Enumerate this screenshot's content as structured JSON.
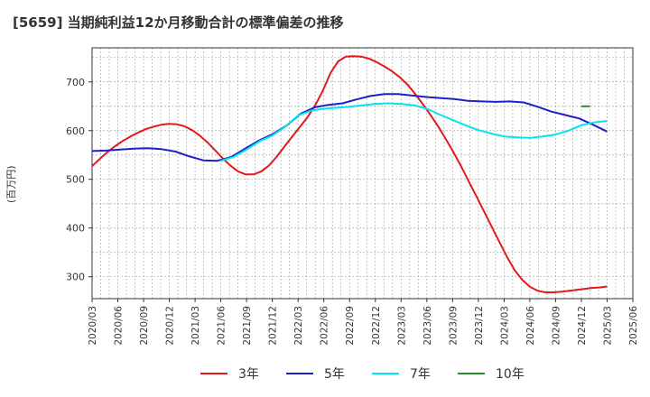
{
  "chart_data": {
    "type": "line",
    "title": "[5659]  当期純利益12か月移動合計の標準偏差の推移",
    "ylabel": "(百万円)",
    "xlabel": "",
    "ylim": [
      255,
      770
    ],
    "yticks": [
      300,
      400,
      500,
      600,
      700
    ],
    "grid": true,
    "legend_position": "bottom",
    "x_tick_labels": [
      "2020/03",
      "2020/06",
      "2020/09",
      "2020/12",
      "2021/03",
      "2021/06",
      "2021/09",
      "2021/12",
      "2022/03",
      "2022/06",
      "2022/09",
      "2022/12",
      "2023/03",
      "2023/06",
      "2023/09",
      "2023/12",
      "2024/03",
      "2024/06",
      "2024/09",
      "2024/12",
      "2025/03",
      "2025/06"
    ],
    "series": [
      {
        "name": "3年",
        "color": "#e31a1c",
        "points": [
          [
            "2020/03",
            527
          ],
          [
            "2020/04",
            542
          ],
          [
            "2020/05",
            556
          ],
          [
            "2020/06",
            568
          ],
          [
            "2020/07",
            579
          ],
          [
            "2020/08",
            588
          ],
          [
            "2020/09",
            596
          ],
          [
            "2020/10",
            603
          ],
          [
            "2020/11",
            608
          ],
          [
            "2020/12",
            612
          ],
          [
            "2021/01",
            614
          ],
          [
            "2021/02",
            613
          ],
          [
            "2021/03",
            609
          ],
          [
            "2021/04",
            601
          ],
          [
            "2021/05",
            590
          ],
          [
            "2021/06",
            576
          ],
          [
            "2021/07",
            560
          ],
          [
            "2021/08",
            543
          ],
          [
            "2021/09",
            528
          ],
          [
            "2021/10",
            516
          ],
          [
            "2021/11",
            510
          ],
          [
            "2021/12",
            510
          ],
          [
            "2022/01",
            516
          ],
          [
            "2022/02",
            528
          ],
          [
            "2022/03",
            546
          ],
          [
            "2022/04",
            567
          ],
          [
            "2022/05",
            587
          ],
          [
            "2022/06",
            607
          ],
          [
            "2022/07",
            627
          ],
          [
            "2022/08",
            651
          ],
          [
            "2022/09",
            681
          ],
          [
            "2022/10",
            718
          ],
          [
            "2022/11",
            742
          ],
          [
            "2022/12",
            752
          ],
          [
            "2023/01",
            753
          ],
          [
            "2023/02",
            752
          ],
          [
            "2023/03",
            748
          ],
          [
            "2023/04",
            741
          ],
          [
            "2023/05",
            732
          ],
          [
            "2023/06",
            722
          ],
          [
            "2023/07",
            710
          ],
          [
            "2023/08",
            695
          ],
          [
            "2023/09",
            676
          ],
          [
            "2023/10",
            655
          ],
          [
            "2023/11",
            633
          ],
          [
            "2023/12",
            609
          ],
          [
            "2024/01",
            583
          ],
          [
            "2024/02",
            556
          ],
          [
            "2024/03",
            527
          ],
          [
            "2024/04",
            496
          ],
          [
            "2024/05",
            465
          ],
          [
            "2024/06",
            434
          ],
          [
            "2024/07",
            402
          ],
          [
            "2024/08",
            371
          ],
          [
            "2024/09",
            340
          ],
          [
            "2024/10",
            313
          ],
          [
            "2024/11",
            293
          ],
          [
            "2024/12",
            279
          ],
          [
            "2025/01",
            271
          ],
          [
            "2025/02",
            268
          ],
          [
            "2025/03",
            268
          ],
          [
            "2025/04",
            269
          ],
          [
            "2025/05",
            271
          ],
          [
            "2025/06",
            273
          ],
          [
            "2025/07",
            275
          ],
          [
            "2025/08",
            277
          ],
          [
            "2025/09",
            278
          ],
          [
            "2025/10",
            280
          ]
        ]
      },
      {
        "name": "5年",
        "color": "#1f1fc8",
        "points": [
          [
            "2020/03",
            558
          ],
          [
            "2020/06",
            559
          ],
          [
            "2020/09",
            561
          ],
          [
            "2020/12",
            563
          ],
          [
            "2021/03",
            564
          ],
          [
            "2021/06",
            562
          ],
          [
            "2021/09",
            557
          ],
          [
            "2021/12",
            547
          ],
          [
            "2022/03",
            539
          ],
          [
            "2022/06",
            538
          ],
          [
            "2022/09",
            546
          ],
          [
            "2022/12",
            563
          ],
          [
            "2023/03",
            580
          ],
          [
            "2023/06",
            593
          ],
          [
            "2023/09",
            611
          ],
          [
            "2023/12",
            635
          ],
          [
            "2024/01",
            648
          ],
          [
            "2024/02",
            653
          ],
          [
            "2024/03",
            656
          ],
          [
            "2024/06",
            664
          ],
          [
            "2024/09",
            671
          ],
          [
            "2024/12",
            675
          ],
          [
            "2025/01",
            675
          ],
          [
            "2025/02",
            672
          ],
          [
            "2025/03",
            669
          ],
          [
            "2025/06",
            667
          ],
          [
            "2025/09",
            665
          ],
          [
            "2025/12",
            661
          ],
          [
            "2026/01",
            660
          ],
          [
            "2026/03",
            659
          ],
          [
            "2026/06",
            660
          ],
          [
            "2026/09",
            658
          ],
          [
            "2026/12",
            649
          ],
          [
            "2027/03",
            639
          ],
          [
            "2027/04",
            632
          ],
          [
            "2027/05",
            625
          ],
          [
            "2027/06",
            612
          ],
          [
            "2027/07",
            598
          ]
        ]
      },
      {
        "name": "7年",
        "color": "#00e5ee",
        "points": [
          [
            "2022/06",
            538
          ],
          [
            "2022/09",
            546
          ],
          [
            "2022/12",
            561
          ],
          [
            "2023/03",
            578
          ],
          [
            "2023/06",
            590
          ],
          [
            "2023/09",
            608
          ],
          [
            "2023/12",
            631
          ],
          [
            "2024/01",
            641
          ],
          [
            "2024/02",
            645
          ],
          [
            "2024/03",
            647
          ],
          [
            "2024/06",
            649
          ],
          [
            "2024/09",
            652
          ],
          [
            "2024/12",
            655
          ],
          [
            "2025/01",
            656
          ],
          [
            "2025/02",
            655
          ],
          [
            "2025/03",
            652
          ],
          [
            "2025/06",
            645
          ],
          [
            "2025/09",
            633
          ],
          [
            "2025/12",
            622
          ],
          [
            "2026/03",
            611
          ],
          [
            "2026/06",
            601
          ],
          [
            "2026/09",
            594
          ],
          [
            "2026/12",
            588
          ],
          [
            "2027/01",
            586
          ],
          [
            "2027/03",
            585
          ],
          [
            "2027/06",
            588
          ],
          [
            "2027/09",
            592
          ],
          [
            "2027/12",
            600
          ],
          [
            "2028/03",
            611
          ],
          [
            "2028/04",
            617
          ],
          [
            "2028/05",
            620
          ]
        ]
      },
      {
        "name": "10年",
        "color": "#2e8b2e",
        "points": [
          [
            "2028/02",
            650
          ],
          [
            "2028/03",
            650
          ],
          [
            "2028/04",
            650
          ]
        ]
      }
    ]
  }
}
